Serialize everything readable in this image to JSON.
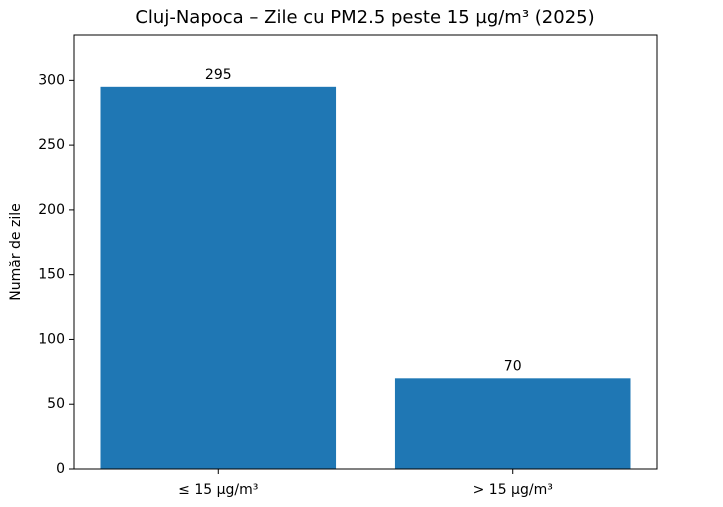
{
  "chart_data": {
    "type": "bar",
    "title": "Cluj-Napoca – Zile cu PM2.5 peste 15 µg/m³ (2025)",
    "y_label": "Număr de zile",
    "categories": [
      "≤ 15 µg/m³",
      "> 15 µg/m³"
    ],
    "values": [
      295,
      70
    ],
    "color": "#1f77b4",
    "ylim": [
      0,
      335
    ],
    "yticks": [
      0,
      50,
      100,
      150,
      200,
      250,
      300
    ],
    "grid": false
  }
}
